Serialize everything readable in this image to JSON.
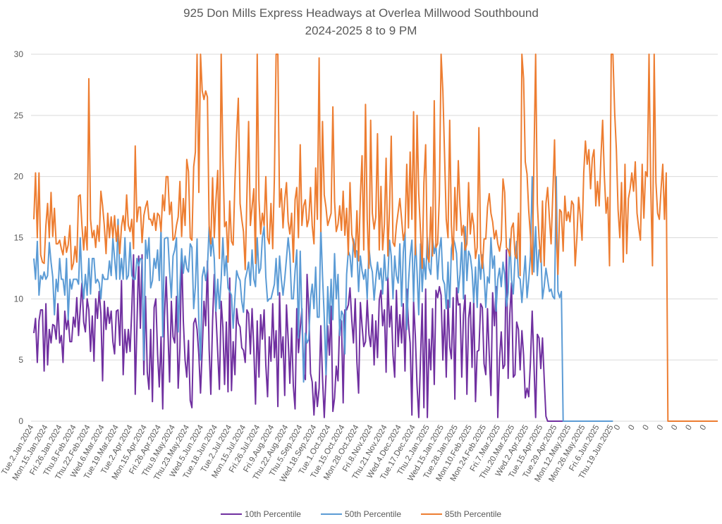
{
  "chart_data": {
    "type": "line",
    "title": "925 Don Mills Express Headways at Overlea Millwood Southbound",
    "subtitle": "2024-2025 8 to 9 PM",
    "xlabel": "",
    "ylabel": "",
    "ylim": [
      0,
      30
    ],
    "yticks": [
      0,
      5,
      10,
      15,
      20,
      25,
      30
    ],
    "grid": true,
    "legend_position": "bottom",
    "x_tick_labels": [
      "Tue.2.Jan.2024",
      "Mon.15.Jan.2024",
      "Fri.26.Jan.2024",
      "Thu.8.Feb.2024",
      "Thu.22.Feb.2024",
      "Wed.6.Mar.2024",
      "Tue.19.Mar.2024",
      "Tue.2.Apr.2024",
      "Mon.15.Apr.2024",
      "Fri.26.Apr.2024",
      "Thu.9.May.2024",
      "Thu.23.May.2024",
      "Wed.5.Jun.2024",
      "Tue.18.Jun.2024",
      "Tue.2.Jul.2024",
      "Mon.15.Jul.2024",
      "Fri.26.Jul.2024",
      "Fri.9.Aug.2024",
      "Thu.22.Aug.2024",
      "Thu.5.Sep.2024",
      "Wed.18.Sep.2024",
      "Tue.1.Oct.2024",
      "Tue.15.Oct.2024",
      "Mon.28.Oct.2024",
      "Fri.8.Nov.2024",
      "Thu.21.Nov.2024",
      "Wed.4.Dec.2024",
      "Tue.17.Dec.2024",
      "Thu.2.Jan.2025",
      "Wed.15.Jan.2025",
      "Tue.28.Jan.2025",
      "Mon.10.Feb.2025",
      "Mon.24.Feb.2025",
      "Fri.7.Mar.2025",
      "Thu.20.Mar.2025",
      "Wed.2.Apr.2025",
      "Tue.15.Apr.2025",
      "Tue.29.Apr.2025",
      "Mon.12.May.2025",
      "Mon.26.May.2025",
      "Fri.6.Jun.2025",
      "Thu.19.Jun.2025",
      "0",
      "0",
      "0",
      "0",
      "0",
      "0",
      "0"
    ],
    "series": [
      {
        "name": "10th Percentile",
        "color": "#7030A0",
        "values": [
          7.2,
          8.4,
          4.8,
          8.2,
          9.1,
          9.1,
          4.1,
          9.6,
          4.6,
          7.5,
          6.4,
          7.9,
          7.8,
          6.7,
          9.6,
          6.4,
          7.0,
          4.8,
          9.0,
          7.5,
          8.4,
          6.5,
          6.5,
          8.5,
          7.7,
          10.1,
          7.0,
          9.2,
          11.3,
          8.1,
          7.3,
          10.0,
          9.1,
          5.7,
          8.6,
          4.9,
          10.0,
          8.4,
          10.6,
          8.8,
          3.3,
          9.8,
          7.5,
          9.3,
          8.0,
          9.0,
          6.5,
          5.5,
          9.0,
          9.1,
          6.2,
          11.5,
          3.8,
          7.5,
          5.6,
          7.5,
          5.7,
          9.1,
          13.6,
          2.2,
          7.8,
          13.5,
          7.6,
          13.6,
          3.8,
          10.2,
          4.0,
          2.6,
          7.5,
          1.6,
          9.3,
          10.0,
          5.5,
          2.8,
          6.9,
          1.0,
          8.5,
          11.8,
          7.5,
          3.2,
          9.8,
          6.9,
          6.4,
          10.2,
          2.7,
          6.0,
          14.0,
          8.2,
          5.0,
          3.6,
          6.6,
          1.7,
          1.1,
          8.0,
          8.4,
          7.5,
          5.4,
          2.3,
          5.8,
          9.8,
          7.8,
          13.1,
          5.9,
          2.2,
          8.2,
          12.0,
          8.7,
          5.6,
          2.6,
          9.8,
          7.7,
          3.0,
          8.1,
          2.4,
          11.7,
          2.5,
          6.5,
          3.8,
          9.2,
          8.0,
          7.7,
          6.0,
          5.8,
          4.8,
          9.1,
          8.8,
          5.5,
          9.2,
          5.9,
          1.4,
          8.2,
          3.6,
          8.7,
          6.7,
          9.1,
          4.6,
          2.0,
          6.9,
          4.9,
          9.6,
          5.2,
          7.4,
          1.2,
          10.5,
          5.2,
          6.9,
          2.1,
          9.5,
          6.7,
          3.1,
          7.6,
          2.9,
          1.0,
          9.2,
          5.6,
          7.6,
          9.2,
          3.9,
          3.4,
          12.0,
          9.2,
          3.9,
          3.2,
          0.5,
          3.2,
          1.2,
          2.7,
          7.8,
          3.5,
          0.3,
          3.6,
          7.8,
          5.4,
          9.4,
          0.8,
          1.9,
          4.5,
          3.3,
          8.3,
          8.2,
          1.5,
          9.1,
          9.1,
          9.5,
          10.9,
          8.3,
          6.4,
          10.0,
          4.8,
          2.3,
          9.7,
          7.8,
          6.1,
          6.5,
          9.9,
          7.1,
          6.1,
          8.7,
          4.6,
          8.2,
          5.2,
          9.9,
          10.7,
          7.8,
          9.1,
          4.0,
          11.8,
          7.7,
          9.4,
          5.4,
          3.6,
          10.7,
          6.1,
          8.7,
          6.4,
          9.6,
          4.1,
          10.8,
          8.0,
          6.4,
          0.5,
          9.8,
          6.9,
          2.9,
          0.3,
          5.1,
          9.6,
          1.1,
          10.8,
          0.3,
          6.7,
          4.2,
          9.2,
          3.0,
          10.7,
          10.1,
          11.0,
          10.3,
          5.0,
          9.1,
          3.6,
          9.9,
          6.1,
          5.1,
          10.1,
          1.8,
          10.9,
          9.5,
          9.6,
          3.6,
          8.7,
          10.3,
          2.2,
          8.4,
          9.7,
          4.4,
          9.9,
          1.6,
          5.7,
          5.8,
          9.6,
          9.3,
          4.7,
          3.8,
          9.2,
          5.4,
          2.1,
          10.5,
          7.8,
          11.0,
          0.3,
          5.1,
          7.3,
          4.3,
          4.6,
          14.0,
          3.5,
          8.8,
          11.3,
          3.6,
          3.8,
          8.1,
          7.5,
          4.2,
          7.4,
          5.4,
          1.9,
          2.7,
          2.0,
          4.8,
          9.0,
          4.9,
          0.3,
          7.1,
          6.8,
          4.3,
          6.8,
          3.5,
          0.4,
          0.0,
          0.0,
          0.0,
          0.0,
          0.0,
          0.0,
          0.0,
          0.0,
          0.0,
          0.0,
          0.0,
          0.0,
          0.0,
          0.0,
          0.0,
          0.0,
          0.0,
          0.0,
          0.0,
          0.0,
          0.0,
          0.0,
          0.0,
          0.0,
          0.0,
          0.0,
          0.0,
          0.0,
          0.0,
          0.0,
          0.0,
          0.0,
          0.0,
          0.0,
          0.0
        ]
      },
      {
        "name": "50th Percentile",
        "color": "#5B9BD5",
        "values": [
          13.3,
          11.6,
          14.7,
          10.3,
          11.9,
          11.6,
          12.2,
          11.6,
          11.9,
          14.6,
          13.0,
          11.8,
          8.7,
          11.6,
          10.6,
          13.3,
          11.6,
          11.6,
          10.3,
          13.3,
          8.3,
          11.6,
          10.8,
          11.6,
          11.6,
          11.6,
          11.2,
          15.0,
          11.6,
          10.0,
          12.0,
          10.3,
          13.3,
          10.4,
          13.3,
          13.3,
          11.3,
          11.6,
          11.3,
          10.0,
          12.0,
          11.6,
          11.6,
          11.6,
          13.1,
          11.9,
          15.0,
          13.3,
          11.6,
          16.5,
          11.6,
          13.3,
          11.6,
          15.0,
          11.6,
          11.9,
          14.6,
          11.9,
          11.6,
          11.6,
          13.3,
          12.7,
          13.3,
          13.2,
          5.0,
          14.8,
          13.3,
          15.0,
          10.9,
          11.5,
          13.3,
          12.5,
          14.0,
          11.5,
          15.9,
          6.9,
          14.9,
          15.0,
          15.0,
          12.3,
          10.1,
          13.5,
          14.0,
          15.0,
          7.3,
          11.2,
          14.1,
          12.1,
          13.5,
          12.5,
          12.2,
          14.5,
          14.2,
          9.2,
          11.0,
          14.9,
          8.0,
          5.0,
          11.8,
          12.6,
          11.5,
          12.5,
          15.9,
          13.5,
          15.0,
          13.3,
          9.0,
          11.6,
          9.2,
          11.6,
          15.0,
          11.9,
          13.5,
          10.9,
          10.6,
          10.3,
          7.6,
          10.1,
          12.3,
          11.8,
          11.5,
          9.8,
          8.9,
          11.6,
          12.2,
          13.0,
          11.1,
          14.0,
          11.6,
          11.0,
          15.0,
          12.1,
          12.5,
          15.0,
          15.9,
          11.8,
          9.8,
          10.0,
          10.0,
          10.6,
          11.2,
          13.3,
          10.3,
          13.5,
          11.6,
          10.3,
          11.6,
          13.3,
          15.0,
          13.6,
          10.0,
          10.0,
          12.3,
          14.0,
          6.8,
          13.9,
          8.5,
          3.2,
          7.2,
          6.4,
          6.7,
          10.0,
          11.2,
          9.2,
          12.6,
          8.5,
          8.5,
          15.9,
          11.9,
          8.5,
          3.8,
          11.0,
          8.0,
          11.6,
          8.3,
          13.7,
          10.0,
          12.0,
          7.0,
          9.0,
          8.7,
          5.5,
          12.0,
          13.9,
          13.5,
          11.8,
          14.9,
          14.0,
          13.9,
          10.6,
          13.5,
          12.3,
          11.6,
          12.4,
          10.0,
          14.2,
          12.8,
          12.2,
          9.9,
          11.6,
          13.0,
          11.6,
          12.5,
          10.4,
          13.6,
          11.5,
          11.8,
          14.8,
          13.5,
          10.0,
          13.5,
          11.9,
          11.3,
          14.5,
          9.4,
          13.8,
          15.5,
          7.5,
          11.3,
          13.5,
          14.8,
          9.8,
          15.0,
          12.2,
          8.7,
          14.5,
          10.6,
          13.3,
          11.6,
          15.0,
          12.5,
          12.0,
          15.0,
          13.7,
          14.5,
          11.6,
          14.0,
          15.0,
          11.6,
          11.2,
          9.2,
          13.0,
          9.3,
          14.1,
          15.0,
          14.5,
          13.7,
          10.5,
          12.0,
          14.6,
          10.0,
          15.9,
          11.5,
          13.9,
          13.5,
          12.3,
          9.7,
          12.6,
          9.3,
          13.6,
          11.6,
          13.6,
          12.0,
          9.3,
          11.8,
          11.3,
          15.0,
          12.5,
          13.5,
          9.0,
          11.6,
          12.5,
          11.0,
          13.0,
          12.0,
          9.4,
          10.5,
          14.9,
          11.6,
          10.4,
          13.3,
          14.7,
          11.8,
          11.6,
          9.7,
          11.6,
          13.5,
          10.1,
          11.6,
          13.5,
          20.0,
          12.2,
          15.9,
          11.9,
          14.0,
          14.0,
          10.0,
          11.0,
          12.5,
          11.6,
          10.6,
          10.8,
          10.2,
          10.0,
          20.0,
          10.6,
          10.1,
          10.6,
          0.0,
          0.0,
          0.0,
          0.0,
          0.0,
          0.0,
          0.0,
          0.0,
          0.0,
          0.0,
          0.0,
          0.0,
          0.0,
          0.0,
          0.0,
          0.0,
          0.0,
          0.0,
          0.0,
          0.0,
          0.0,
          0.0,
          0.0,
          0.0,
          0.0,
          0.0,
          0.0,
          0.0,
          0.0,
          0.0
        ]
      },
      {
        "name": "85th Percentile",
        "color": "#ED7D31",
        "values": [
          16.5,
          20.3,
          15.0,
          20.3,
          13.6,
          13.0,
          12.9,
          16.0,
          17.8,
          15.0,
          18.7,
          15.1,
          17.4,
          14.5,
          14.5,
          14.8,
          14.1,
          13.6,
          15.1,
          13.8,
          14.4,
          16.0,
          12.4,
          12.9,
          14.3,
          13.0,
          18.4,
          18.5,
          16.0,
          14.0,
          15.9,
          14.0,
          28.0,
          16.5,
          15.0,
          15.6,
          14.2,
          16.0,
          14.7,
          18.8,
          17.6,
          16.0,
          13.7,
          17.0,
          15.0,
          16.7,
          15.0,
          16.8,
          14.7,
          16.0,
          13.7,
          15.9,
          16.8,
          15.6,
          18.5,
          16.0,
          15.5,
          16.5,
          14.1,
          22.5,
          16.3,
          17.5,
          17.5,
          14.6,
          16.8,
          17.5,
          18.0,
          16.5,
          16.5,
          16.0,
          17.0,
          15.6,
          17.0,
          16.8,
          15.5,
          18.5,
          17.2,
          20.0,
          20.0,
          16.9,
          17.9,
          14.8,
          15.0,
          16.0,
          16.7,
          19.6,
          15.1,
          18.2,
          16.0,
          21.4,
          20.4,
          15.0,
          14.8,
          20.8,
          22.0,
          30.0,
          18.7,
          30.0,
          27.0,
          26.3,
          27.0,
          26.5,
          16.0,
          14.5,
          19.9,
          15.0,
          18.1,
          20.5,
          13.3,
          30.0,
          21.7,
          15.9,
          16.3,
          13.0,
          18.0,
          14.7,
          14.4,
          19.6,
          23.5,
          26.4,
          17.8,
          16.5,
          15.5,
          12.4,
          18.5,
          24.5,
          16.0,
          17.5,
          19.0,
          12.9,
          30.0,
          18.1,
          15.3,
          17.0,
          16.0,
          20.0,
          15.0,
          14.5,
          17.8,
          14.1,
          20.0,
          30.0,
          30.0,
          17.5,
          19.0,
          15.8,
          18.1,
          19.5,
          16.3,
          15.3,
          17.0,
          13.0,
          18.1,
          19.1,
          15.0,
          22.6,
          16.0,
          17.6,
          18.1,
          15.9,
          16.5,
          19.1,
          16.0,
          14.5,
          20.7,
          16.5,
          29.7,
          15.5,
          24.5,
          18.5,
          17.5,
          16.0,
          16.5,
          17.0,
          25.7,
          18.0,
          15.5,
          16.1,
          17.6,
          15.6,
          18.8,
          15.2,
          17.4,
          13.6,
          19.5,
          15.3,
          14.5,
          13.4,
          17.2,
          13.1,
          18.4,
          21.7,
          14.0,
          25.9,
          16.5,
          12.5,
          24.6,
          17.0,
          15.7,
          16.7,
          23.5,
          14.0,
          19.2,
          14.0,
          16.1,
          21.5,
          13.5,
          17.5,
          23.3,
          14.6,
          14.3,
          16.0,
          17.1,
          18.2,
          16.5,
          14.8,
          15.5,
          21.0,
          15.8,
          22.0,
          16.5,
          25.3,
          13.6,
          25.0,
          18.6,
          15.5,
          12.5,
          19.5,
          22.6,
          13.5,
          13.0,
          17.5,
          13.5,
          26.2,
          14.2,
          14.5,
          18.5,
          30.0,
          27.0,
          21.8,
          16.5,
          15.0,
          24.6,
          16.0,
          13.2,
          19.1,
          15.6,
          21.3,
          17.6,
          15.2,
          16.0,
          14.0,
          14.5,
          19.5,
          15.3,
          17.0,
          16.0,
          13.3,
          14.2,
          24.0,
          14.0,
          12.5,
          14.9,
          14.9,
          17.5,
          18.6,
          17.0,
          16.3,
          14.9,
          15.6,
          14.5,
          13.9,
          14.8,
          19.8,
          18.7,
          14.2,
          14.0,
          13.5,
          15.8,
          16.2,
          13.6,
          13.3,
          17.0,
          11.9,
          30.0,
          28.0,
          21.2,
          20.2,
          17.2,
          15.2,
          12.0,
          21.0,
          30.0,
          17.8,
          15.0,
          13.0,
          18.0,
          12.7,
          17.8,
          19.1,
          16.6,
          14.5,
          18.5,
          23.0,
          15.5,
          12.0,
          17.3,
          17.1,
          13.9,
          18.4,
          16.4,
          17.1,
          16.3,
          18.0,
          17.7,
          12.7,
          15.0,
          18.3,
          16.8,
          14.8,
          20.3,
          22.9,
          21.0,
          22.2,
          19.0,
          21.5,
          22.2,
          17.6,
          19.6,
          17.6,
          21.6,
          24.6,
          20.1,
          17.0,
          18.3,
          12.7,
          30.0,
          30.0,
          25.2,
          22.2,
          17.3,
          15.0,
          19.5,
          13.0,
          21.0,
          13.7,
          18.2,
          19.0,
          20.3,
          18.8,
          21.2,
          17.0,
          15.8,
          14.8,
          21.0,
          16.6,
          20.4,
          20.0,
          30.0,
          19.3,
          12.7,
          30.0,
          19.5,
          17.0,
          16.5,
          19.0,
          21.0,
          16.5,
          20.3,
          0.0,
          0.0,
          0.0,
          0.0,
          0.0,
          0.0,
          0.0,
          0.0,
          0.0,
          0.0,
          0.0,
          0.0,
          0.0,
          0.0,
          0.0,
          0.0,
          0.0,
          0.0,
          0.0,
          0.0,
          0.0,
          0.0,
          0.0,
          0.0,
          0.0,
          0.0,
          0.0,
          0.0,
          0.0,
          0.0
        ]
      }
    ]
  }
}
